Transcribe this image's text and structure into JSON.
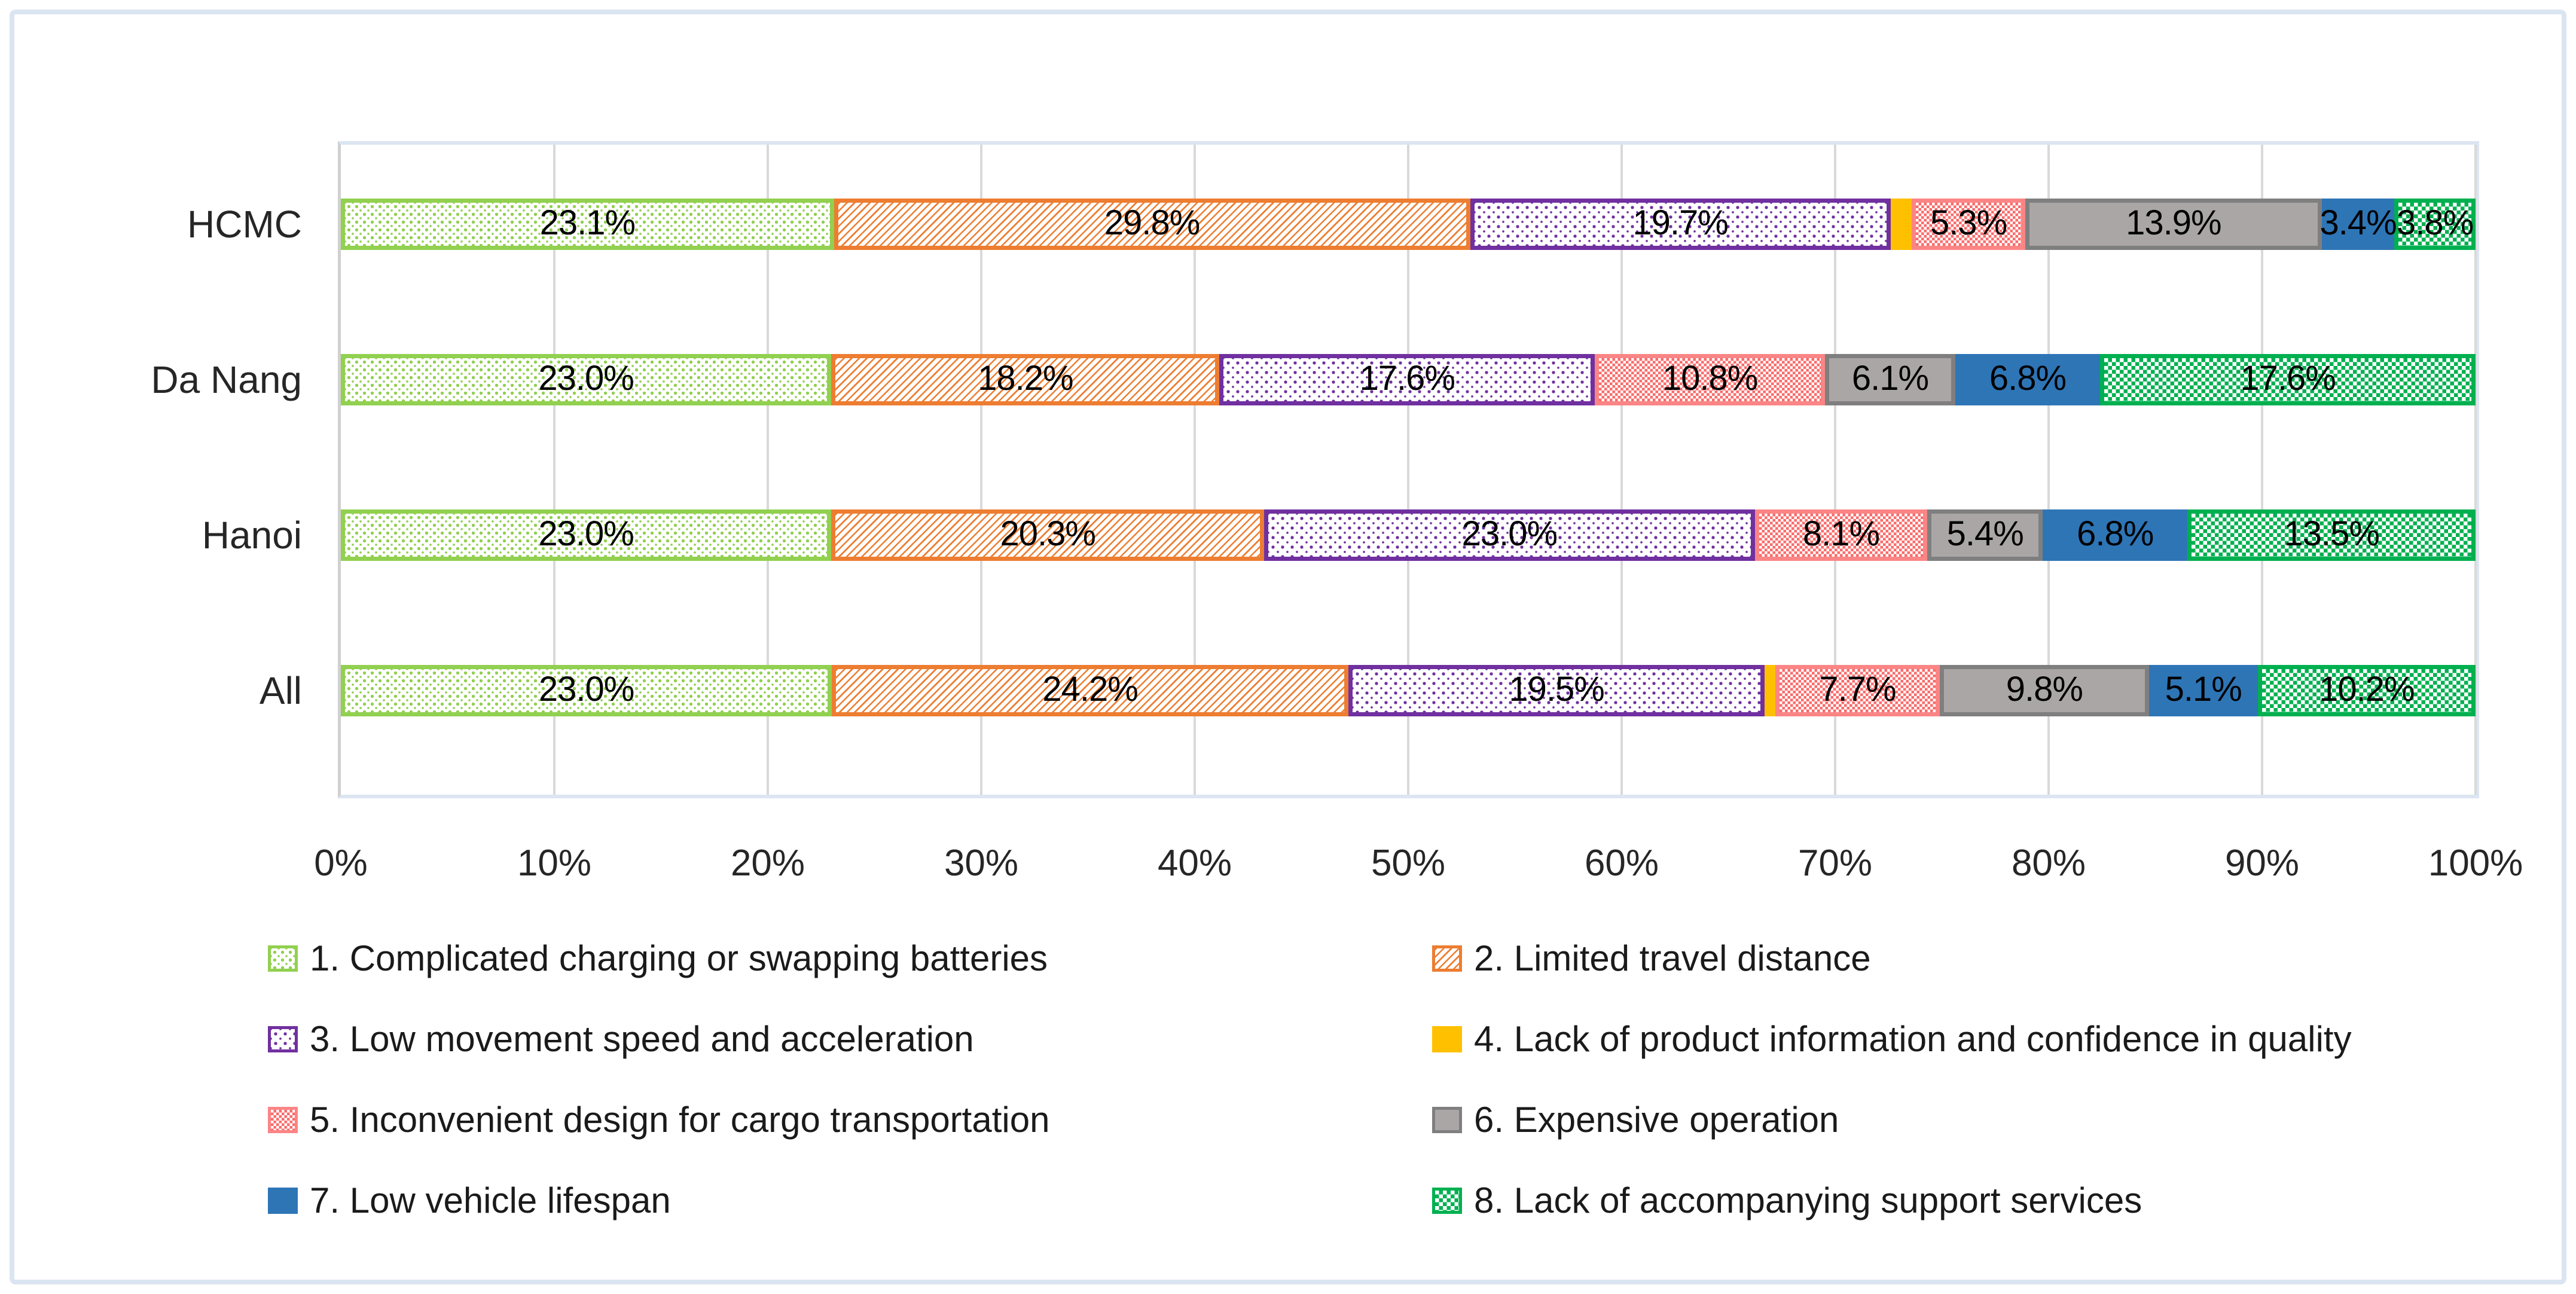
{
  "chart_data": {
    "type": "bar",
    "orientation": "horizontal-stacked",
    "title": "",
    "xlabel": "",
    "ylabel": "",
    "xlim": [
      0,
      100
    ],
    "grid": true,
    "legend_position": "bottom-two-columns",
    "value_suffix": "%",
    "categories": [
      "HCMC",
      "Da Nang",
      "Hanoi",
      "All"
    ],
    "x_ticks": [
      "0%",
      "10%",
      "20%",
      "30%",
      "40%",
      "50%",
      "60%",
      "70%",
      "80%",
      "90%",
      "100%"
    ],
    "series": [
      {
        "name": "1. Complicated charging or swapping batteries",
        "color": "#92D050",
        "pattern": "dots",
        "pattern_size": 13,
        "labeled": true,
        "values": [
          23.1,
          23.0,
          23.0,
          23.0
        ]
      },
      {
        "name": "2. Limited travel distance",
        "color": "#ED7D31",
        "pattern": "diagonal",
        "labeled": true,
        "values": [
          29.8,
          18.2,
          20.3,
          24.2
        ]
      },
      {
        "name": "3. Low movement speed and acceleration",
        "color": "#7030A0",
        "pattern": "dots",
        "pattern_size": 16,
        "labeled": true,
        "values": [
          19.7,
          17.6,
          23.0,
          19.5
        ]
      },
      {
        "name": "4. Lack of product information and confidence in quality",
        "color": "#FFC000",
        "pattern": "solid",
        "labeled": false,
        "values": [
          1.0,
          0,
          0,
          0.5
        ]
      },
      {
        "name": "5. Inconvenient design for cargo transportation",
        "color": "#F96B6B",
        "border_color": "#FB8585",
        "pattern": "checker",
        "pattern_size": 9,
        "labeled": true,
        "values": [
          5.3,
          10.8,
          8.1,
          7.7
        ]
      },
      {
        "name": "6. Expensive operation",
        "color": "#ABA6A6",
        "border_color": "#7F7F7F",
        "pattern": "solid",
        "labeled": true,
        "values": [
          13.9,
          6.1,
          5.4,
          9.8
        ]
      },
      {
        "name": "7.  Low vehicle lifespan",
        "color": "#2E75B6",
        "pattern": "solid",
        "labeled": true,
        "values": [
          3.4,
          6.8,
          6.8,
          5.1
        ]
      },
      {
        "name": "8. Lack of accompanying support services",
        "color": "#00B050",
        "pattern": "checker",
        "pattern_size": 13,
        "labeled": true,
        "values": [
          3.8,
          17.6,
          13.5,
          10.2
        ]
      }
    ],
    "colors": {
      "gridline": "#d9d9d9",
      "axis_line": "#d0d0d0",
      "plot_border": "#dce6f2",
      "figure_border": "#dbe5f1",
      "label_text": "#000000",
      "axis_text": "#262626"
    }
  }
}
